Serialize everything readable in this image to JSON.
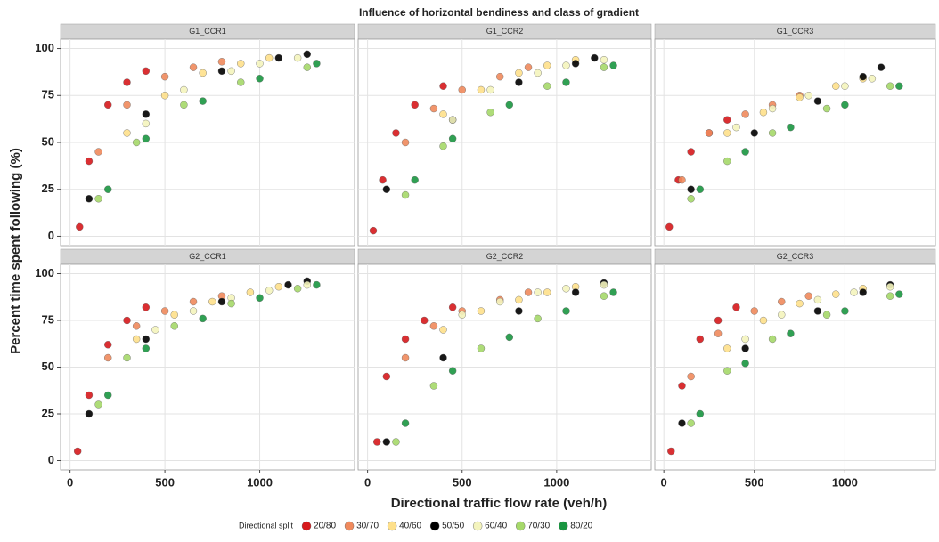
{
  "figure": {
    "title": "Influence of horizontal bendiness and class of gradient",
    "x_label": "Directional traffic flow rate (veh/h)",
    "y_label": "Percent time spent following (%)",
    "legend_title": "Directional split",
    "legend_position": "bottom"
  },
  "chart_data": [
    {
      "type": "scatter",
      "title": "G1_CCR1",
      "xlim": [
        -50,
        1500
      ],
      "ylim": [
        -5,
        105
      ],
      "xticks": [
        0,
        500,
        1000
      ],
      "yticks": [
        0,
        25,
        50,
        75,
        100
      ],
      "grid": true,
      "series": [
        {
          "name": "20/80",
          "color": "#d7191c",
          "x": [
            50,
            100,
            200,
            300,
            400
          ],
          "values": [
            5,
            40,
            70,
            82,
            88
          ]
        },
        {
          "name": "30/70",
          "color": "#f08a5d",
          "x": [
            150,
            300,
            500,
            650,
            800
          ],
          "values": [
            45,
            70,
            85,
            90,
            93
          ]
        },
        {
          "name": "40/60",
          "color": "#fee08b",
          "x": [
            300,
            500,
            700,
            900,
            1050
          ],
          "values": [
            55,
            75,
            87,
            92,
            95
          ]
        },
        {
          "name": "50/50",
          "color": "#000000",
          "x": [
            100,
            400,
            800,
            1100,
            1250
          ],
          "values": [
            20,
            65,
            88,
            95,
            97
          ]
        },
        {
          "name": "60/40",
          "color": "#f4f4bd",
          "x": [
            400,
            600,
            850,
            1000,
            1200
          ],
          "values": [
            60,
            78,
            88,
            92,
            95
          ]
        },
        {
          "name": "70/30",
          "color": "#a6d96a",
          "x": [
            150,
            350,
            600,
            900,
            1250
          ],
          "values": [
            20,
            50,
            70,
            82,
            90
          ]
        },
        {
          "name": "80/20",
          "color": "#1a9641",
          "x": [
            200,
            400,
            700,
            1000,
            1300
          ],
          "values": [
            25,
            52,
            72,
            84,
            92
          ]
        }
      ]
    },
    {
      "type": "scatter",
      "title": "G1_CCR2",
      "xlim": [
        -50,
        1500
      ],
      "ylim": [
        -5,
        105
      ],
      "xticks": [
        0,
        500,
        1000
      ],
      "yticks": [
        0,
        25,
        50,
        75,
        100
      ],
      "grid": true,
      "series": [
        {
          "name": "20/80",
          "color": "#d7191c",
          "x": [
            30,
            80,
            150,
            250,
            400
          ],
          "values": [
            3,
            30,
            55,
            70,
            80
          ]
        },
        {
          "name": "30/70",
          "color": "#f08a5d",
          "x": [
            200,
            350,
            500,
            700,
            850
          ],
          "values": [
            50,
            68,
            78,
            85,
            90
          ]
        },
        {
          "name": "40/60",
          "color": "#fee08b",
          "x": [
            400,
            600,
            800,
            950,
            1100
          ],
          "values": [
            65,
            78,
            87,
            91,
            94
          ]
        },
        {
          "name": "50/50",
          "color": "#000000",
          "x": [
            100,
            450,
            800,
            1100,
            1200
          ],
          "values": [
            25,
            62,
            82,
            92,
            95
          ]
        },
        {
          "name": "60/40",
          "color": "#f4f4bd",
          "x": [
            450,
            650,
            900,
            1050,
            1250
          ],
          "values": [
            62,
            78,
            87,
            91,
            94
          ]
        },
        {
          "name": "70/30",
          "color": "#a6d96a",
          "x": [
            200,
            400,
            650,
            950,
            1250
          ],
          "values": [
            22,
            48,
            66,
            80,
            90
          ]
        },
        {
          "name": "80/20",
          "color": "#1a9641",
          "x": [
            250,
            450,
            750,
            1050,
            1300
          ],
          "values": [
            30,
            52,
            70,
            82,
            91
          ]
        }
      ]
    },
    {
      "type": "scatter",
      "title": "G1_CCR3",
      "xlim": [
        -50,
        1500
      ],
      "ylim": [
        -5,
        105
      ],
      "xticks": [
        0,
        500,
        1000
      ],
      "yticks": [
        0,
        25,
        50,
        75,
        100
      ],
      "grid": true,
      "series": [
        {
          "name": "20/80",
          "color": "#d7191c",
          "x": [
            30,
            80,
            150,
            250,
            350
          ],
          "values": [
            5,
            30,
            45,
            55,
            62
          ]
        },
        {
          "name": "30/70",
          "color": "#f08a5d",
          "x": [
            100,
            250,
            450,
            600,
            750
          ],
          "values": [
            30,
            55,
            65,
            70,
            75
          ]
        },
        {
          "name": "40/60",
          "color": "#fee08b",
          "x": [
            350,
            550,
            750,
            950,
            1100
          ],
          "values": [
            55,
            66,
            74,
            80,
            84
          ]
        },
        {
          "name": "50/50",
          "color": "#000000",
          "x": [
            150,
            500,
            850,
            1100,
            1200
          ],
          "values": [
            25,
            55,
            72,
            85,
            90
          ]
        },
        {
          "name": "60/40",
          "color": "#f4f4bd",
          "x": [
            400,
            600,
            800,
            1000,
            1150
          ],
          "values": [
            58,
            68,
            75,
            80,
            84
          ]
        },
        {
          "name": "70/30",
          "color": "#a6d96a",
          "x": [
            150,
            350,
            600,
            900,
            1250
          ],
          "values": [
            20,
            40,
            55,
            68,
            80
          ]
        },
        {
          "name": "80/20",
          "color": "#1a9641",
          "x": [
            200,
            450,
            700,
            1000,
            1300
          ],
          "values": [
            25,
            45,
            58,
            70,
            80
          ]
        }
      ]
    },
    {
      "type": "scatter",
      "title": "G2_CCR1",
      "xlim": [
        -50,
        1500
      ],
      "ylim": [
        -5,
        105
      ],
      "xticks": [
        0,
        500,
        1000
      ],
      "yticks": [
        0,
        25,
        50,
        75,
        100
      ],
      "grid": true,
      "series": [
        {
          "name": "20/80",
          "color": "#d7191c",
          "x": [
            40,
            100,
            200,
            300,
            400
          ],
          "values": [
            5,
            35,
            62,
            75,
            82
          ]
        },
        {
          "name": "30/70",
          "color": "#f08a5d",
          "x": [
            200,
            350,
            500,
            650,
            800
          ],
          "values": [
            55,
            72,
            80,
            85,
            88
          ]
        },
        {
          "name": "40/60",
          "color": "#fee08b",
          "x": [
            350,
            550,
            750,
            950,
            1100
          ],
          "values": [
            65,
            78,
            85,
            90,
            93
          ]
        },
        {
          "name": "50/50",
          "color": "#000000",
          "x": [
            100,
            400,
            800,
            1150,
            1250
          ],
          "values": [
            25,
            65,
            85,
            94,
            96
          ]
        },
        {
          "name": "60/40",
          "color": "#f4f4bd",
          "x": [
            450,
            650,
            850,
            1050,
            1250
          ],
          "values": [
            70,
            80,
            87,
            91,
            94
          ]
        },
        {
          "name": "70/30",
          "color": "#a6d96a",
          "x": [
            150,
            300,
            550,
            850,
            1200
          ],
          "values": [
            30,
            55,
            72,
            84,
            92
          ]
        },
        {
          "name": "80/20",
          "color": "#1a9641",
          "x": [
            200,
            400,
            700,
            1000,
            1300
          ],
          "values": [
            35,
            60,
            76,
            87,
            94
          ]
        }
      ]
    },
    {
      "type": "scatter",
      "title": "G2_CCR2",
      "xlim": [
        -50,
        1500
      ],
      "ylim": [
        -5,
        105
      ],
      "xticks": [
        0,
        500,
        1000
      ],
      "yticks": [
        0,
        25,
        50,
        75,
        100
      ],
      "grid": true,
      "series": [
        {
          "name": "20/80",
          "color": "#d7191c",
          "x": [
            50,
            100,
            200,
            300,
            450
          ],
          "values": [
            10,
            45,
            65,
            75,
            82
          ]
        },
        {
          "name": "30/70",
          "color": "#f08a5d",
          "x": [
            200,
            350,
            500,
            700,
            850
          ],
          "values": [
            55,
            72,
            80,
            86,
            90
          ]
        },
        {
          "name": "40/60",
          "color": "#fee08b",
          "x": [
            400,
            600,
            800,
            950,
            1100
          ],
          "values": [
            70,
            80,
            86,
            90,
            93
          ]
        },
        {
          "name": "50/50",
          "color": "#000000",
          "x": [
            100,
            400,
            800,
            1100,
            1250
          ],
          "values": [
            10,
            55,
            80,
            90,
            95
          ]
        },
        {
          "name": "60/40",
          "color": "#f4f4bd",
          "x": [
            500,
            700,
            900,
            1050,
            1250
          ],
          "values": [
            78,
            85,
            90,
            92,
            94
          ]
        },
        {
          "name": "70/30",
          "color": "#a6d96a",
          "x": [
            150,
            350,
            600,
            900,
            1250
          ],
          "values": [
            10,
            40,
            60,
            76,
            88
          ]
        },
        {
          "name": "80/20",
          "color": "#1a9641",
          "x": [
            200,
            450,
            750,
            1050,
            1300
          ],
          "values": [
            20,
            48,
            66,
            80,
            90
          ]
        }
      ]
    },
    {
      "type": "scatter",
      "title": "G2_CCR3",
      "xlim": [
        -50,
        1500
      ],
      "ylim": [
        -5,
        105
      ],
      "xticks": [
        0,
        500,
        1000
      ],
      "yticks": [
        0,
        25,
        50,
        75,
        100
      ],
      "grid": true,
      "series": [
        {
          "name": "20/80",
          "color": "#d7191c",
          "x": [
            40,
            100,
            200,
            300,
            400
          ],
          "values": [
            5,
            40,
            65,
            75,
            82
          ]
        },
        {
          "name": "30/70",
          "color": "#f08a5d",
          "x": [
            150,
            300,
            500,
            650,
            800
          ],
          "values": [
            45,
            68,
            80,
            85,
            88
          ]
        },
        {
          "name": "40/60",
          "color": "#fee08b",
          "x": [
            350,
            550,
            750,
            950,
            1100
          ],
          "values": [
            60,
            75,
            84,
            89,
            92
          ]
        },
        {
          "name": "50/50",
          "color": "#000000",
          "x": [
            100,
            450,
            850,
            1100,
            1250
          ],
          "values": [
            20,
            60,
            80,
            90,
            94
          ]
        },
        {
          "name": "60/40",
          "color": "#f4f4bd",
          "x": [
            450,
            650,
            850,
            1050,
            1250
          ],
          "values": [
            65,
            78,
            86,
            90,
            93
          ]
        },
        {
          "name": "70/30",
          "color": "#a6d96a",
          "x": [
            150,
            350,
            600,
            900,
            1250
          ],
          "values": [
            20,
            48,
            65,
            78,
            88
          ]
        },
        {
          "name": "80/20",
          "color": "#1a9641",
          "x": [
            200,
            450,
            700,
            1000,
            1300
          ],
          "values": [
            25,
            52,
            68,
            80,
            89
          ]
        }
      ]
    }
  ]
}
